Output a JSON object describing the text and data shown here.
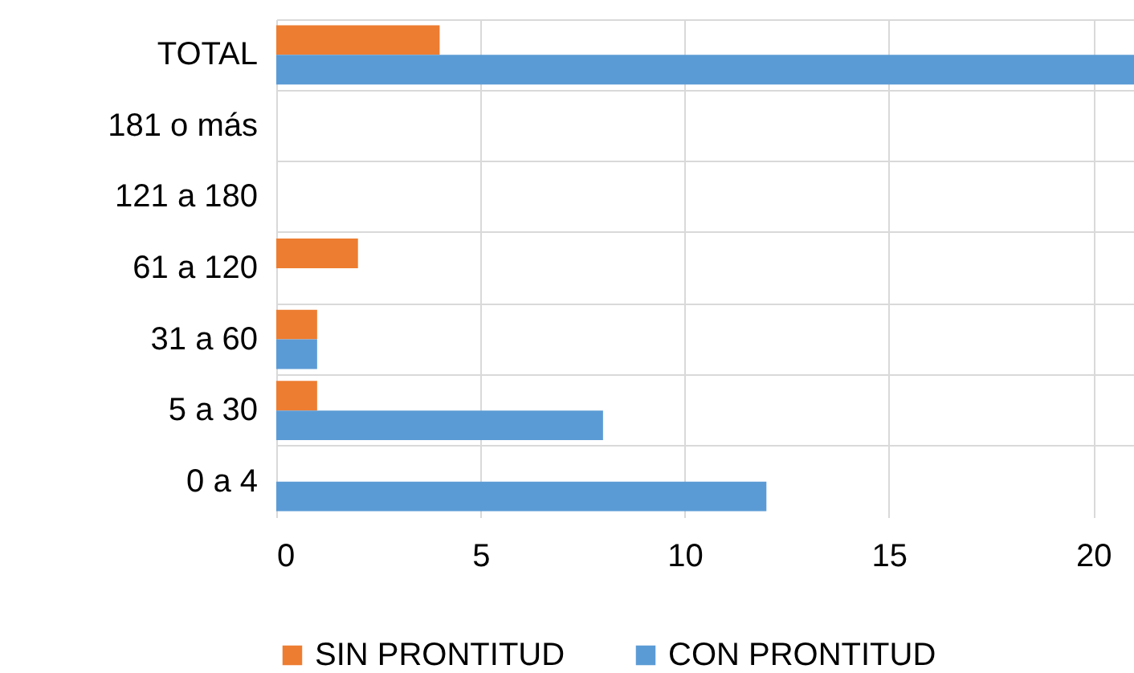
{
  "chart_data": {
    "type": "bar",
    "orientation": "horizontal",
    "categories": [
      "TOTAL",
      "181 o más",
      "121 a 180",
      "61 a 120",
      "31 a 60",
      "5 a 30",
      "0 a 4"
    ],
    "series": [
      {
        "name": "SIN PRONTITUD",
        "color": "#ed7d31",
        "values": [
          4,
          0,
          0,
          2,
          1,
          1,
          0
        ]
      },
      {
        "name": "CON PRONTITUD",
        "color": "#5b9bd5",
        "values": [
          21,
          0,
          0,
          0,
          1,
          8,
          12
        ]
      }
    ],
    "xlim": [
      0,
      21
    ],
    "xticks": [
      0,
      5,
      10,
      15,
      20
    ],
    "grid": true,
    "legend": "bottom"
  }
}
